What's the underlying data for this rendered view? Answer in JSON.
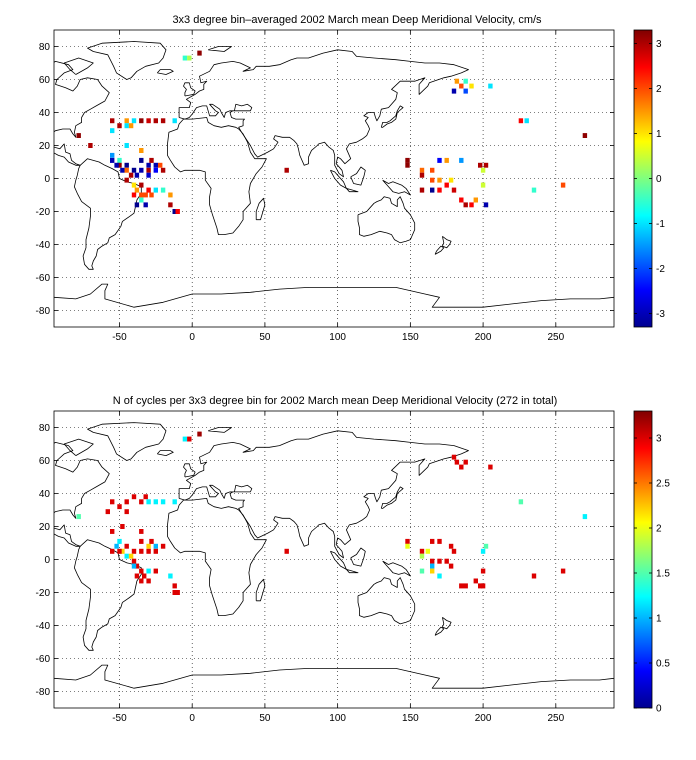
{
  "chart_data": [
    {
      "type": "heatmap",
      "title": "3x3 degree bin–averaged 2002 March mean Deep Meridional Velocity, cm/s",
      "xlim": [
        -95,
        290
      ],
      "ylim": [
        -90,
        90
      ],
      "x_ticks": [
        -50,
        0,
        50,
        100,
        150,
        200,
        250
      ],
      "y_ticks": [
        -80,
        -60,
        -40,
        -20,
        0,
        20,
        40,
        60,
        80
      ],
      "grid": true,
      "colorbar": {
        "range": [
          -3.3,
          3.3
        ],
        "ticks": [
          -3,
          -2,
          -1,
          0,
          1,
          2,
          3
        ],
        "colormap": "jet",
        "placement": "right"
      },
      "bins": [
        [
          5,
          76,
          3.2
        ],
        [
          -5,
          73,
          -0.5
        ],
        [
          -2,
          73,
          0.3
        ],
        [
          -55,
          35,
          3.0
        ],
        [
          -45,
          35,
          1.5
        ],
        [
          -40,
          35,
          -1.0
        ],
        [
          -35,
          35,
          3.2
        ],
        [
          -30,
          35,
          2.8
        ],
        [
          -25,
          35,
          3.0
        ],
        [
          -20,
          35,
          3.0
        ],
        [
          -50,
          32,
          3.0
        ],
        [
          -45,
          32,
          -1.0
        ],
        [
          -42,
          32,
          1.5
        ],
        [
          -55,
          29,
          -1.0
        ],
        [
          -78,
          26,
          3.2
        ],
        [
          -45,
          20,
          -1.0
        ],
        [
          -35,
          17,
          1.5
        ],
        [
          -55,
          14,
          -1.5
        ],
        [
          -50,
          11,
          -0.5
        ],
        [
          -50,
          8,
          3.2
        ],
        [
          -45,
          8,
          -3.2
        ],
        [
          -55,
          11,
          -3.0
        ],
        [
          -52,
          8,
          -3.0
        ],
        [
          -48,
          5,
          -3.0
        ],
        [
          -45,
          5,
          1.8
        ],
        [
          -35,
          11,
          -3.2
        ],
        [
          -30,
          8,
          -3.0
        ],
        [
          -25,
          8,
          -3.0
        ],
        [
          -28,
          11,
          3.0
        ],
        [
          -22,
          8,
          2.0
        ],
        [
          -20,
          5,
          3.0
        ],
        [
          -40,
          5,
          -3.2
        ],
        [
          -35,
          5,
          -3.0
        ],
        [
          -30,
          5,
          3.0
        ],
        [
          -25,
          5,
          -2.5
        ],
        [
          -42,
          2,
          3.0
        ],
        [
          -38,
          2,
          -3.0
        ],
        [
          -30,
          2,
          -2.8
        ],
        [
          -45,
          -1,
          3.0
        ],
        [
          -35,
          -4,
          3.0
        ],
        [
          -38,
          -7,
          1.5
        ],
        [
          -30,
          -7,
          2.5
        ],
        [
          -25,
          -7,
          -1.0
        ],
        [
          -20,
          -7,
          -0.5
        ],
        [
          -40,
          -10,
          2.5
        ],
        [
          -35,
          -10,
          2.0
        ],
        [
          -32,
          -10,
          2.0
        ],
        [
          -28,
          -10,
          2.0
        ],
        [
          -15,
          -10,
          1.5
        ],
        [
          -35,
          -13,
          -0.5
        ],
        [
          -38,
          -16,
          -3.2
        ],
        [
          -32,
          -16,
          -3.0
        ],
        [
          -15,
          -16,
          3.0
        ],
        [
          -12,
          -20,
          -3.2
        ],
        [
          -10,
          -20,
          2.5
        ],
        [
          -40,
          -4,
          1.0
        ],
        [
          65,
          5,
          3.0
        ],
        [
          148,
          11,
          3.2
        ],
        [
          148,
          8,
          3.2
        ],
        [
          170,
          11,
          -2.5
        ],
        [
          175,
          11,
          1.5
        ],
        [
          185,
          11,
          -1.5
        ],
        [
          158,
          5,
          1.8
        ],
        [
          165,
          5,
          2.0
        ],
        [
          198,
          8,
          3.0
        ],
        [
          202,
          8,
          3.0
        ],
        [
          200,
          5,
          0.5
        ],
        [
          158,
          2,
          3.0
        ],
        [
          165,
          -1,
          2.0
        ],
        [
          170,
          -1,
          1.5
        ],
        [
          178,
          -1,
          1.0
        ],
        [
          200,
          -4,
          0.5
        ],
        [
          175,
          -4,
          2.5
        ],
        [
          158,
          -7,
          3.0
        ],
        [
          165,
          -7,
          -3.2
        ],
        [
          170,
          -7,
          2.5
        ],
        [
          180,
          -7,
          2.8
        ],
        [
          185,
          -13,
          2.5
        ],
        [
          188,
          -16,
          3.0
        ],
        [
          195,
          -13,
          1.5
        ],
        [
          202,
          -16,
          -3.0
        ],
        [
          192,
          -16,
          2.5
        ],
        [
          235,
          -7,
          -0.5
        ],
        [
          255,
          -4,
          2.0
        ],
        [
          182,
          59,
          1.5
        ],
        [
          185,
          56,
          2.0
        ],
        [
          188,
          59,
          -0.5
        ],
        [
          180,
          53,
          -3.0
        ],
        [
          188,
          53,
          -2.0
        ],
        [
          205,
          56,
          -1.0
        ],
        [
          192,
          56,
          1.0
        ],
        [
          270,
          26,
          3.2
        ],
        [
          226,
          35,
          2.5
        ],
        [
          230,
          35,
          -1.0
        ],
        [
          -70,
          20,
          3.0
        ],
        [
          -12,
          35,
          -1.0
        ]
      ]
    },
    {
      "type": "heatmap",
      "title": "N of cycles per 3x3 degree bin for 2002 March mean Deep Meridional Velocity (272 in total)",
      "xlim": [
        -95,
        290
      ],
      "ylim": [
        -90,
        90
      ],
      "x_ticks": [
        -50,
        0,
        50,
        100,
        150,
        200,
        250
      ],
      "y_ticks": [
        -80,
        -60,
        -40,
        -20,
        0,
        20,
        40,
        60,
        80
      ],
      "grid": true,
      "colorbar": {
        "range": [
          0,
          3.3
        ],
        "ticks": [
          0,
          0.5,
          1,
          1.5,
          2,
          2.5,
          3
        ],
        "colormap": "jet",
        "placement": "right"
      },
      "bins": [
        [
          5,
          76,
          3.2
        ],
        [
          -5,
          73,
          1.2
        ],
        [
          -2,
          73,
          3.0
        ],
        [
          -55,
          35,
          3.0
        ],
        [
          -45,
          35,
          3.0
        ],
        [
          -40,
          38,
          3.0
        ],
        [
          -35,
          35,
          3.0
        ],
        [
          -30,
          35,
          1.2
        ],
        [
          -25,
          35,
          1.2
        ],
        [
          -20,
          35,
          1.2
        ],
        [
          -32,
          38,
          3.0
        ],
        [
          -50,
          32,
          3.0
        ],
        [
          -58,
          29,
          3.0
        ],
        [
          -45,
          29,
          3.0
        ],
        [
          -78,
          26,
          1.5
        ],
        [
          -48,
          20,
          3.0
        ],
        [
          -55,
          17,
          3.0
        ],
        [
          -35,
          17,
          3.0
        ],
        [
          -50,
          11,
          1.2
        ],
        [
          -52,
          8,
          1.0
        ],
        [
          -48,
          5,
          2.2
        ],
        [
          -45,
          8,
          3.0
        ],
        [
          -50,
          5,
          3.0
        ],
        [
          -55,
          5,
          3.0
        ],
        [
          -35,
          11,
          3.0
        ],
        [
          -30,
          8,
          2.2
        ],
        [
          -25,
          8,
          1.0
        ],
        [
          -20,
          8,
          3.0
        ],
        [
          -28,
          11,
          3.0
        ],
        [
          -40,
          5,
          3.0
        ],
        [
          -35,
          5,
          3.0
        ],
        [
          -30,
          5,
          3.0
        ],
        [
          -25,
          5,
          3.0
        ],
        [
          -45,
          2,
          1.2
        ],
        [
          -42,
          2,
          2.2
        ],
        [
          -40,
          -1,
          3.0
        ],
        [
          -38,
          -4,
          3.0
        ],
        [
          -35,
          -7,
          3.0
        ],
        [
          -30,
          -7,
          1.2
        ],
        [
          -25,
          -7,
          3.0
        ],
        [
          -38,
          -10,
          3.0
        ],
        [
          -33,
          -10,
          3.0
        ],
        [
          -30,
          -13,
          3.0
        ],
        [
          -15,
          -10,
          1.2
        ],
        [
          -35,
          -13,
          3.0
        ],
        [
          -12,
          -16,
          3.0
        ],
        [
          -12,
          -20,
          3.0
        ],
        [
          -10,
          -20,
          3.0
        ],
        [
          -40,
          -4,
          1.0
        ],
        [
          65,
          5,
          3.0
        ],
        [
          148,
          11,
          3.0
        ],
        [
          148,
          8,
          2.0
        ],
        [
          165,
          11,
          3.0
        ],
        [
          170,
          11,
          3.0
        ],
        [
          178,
          8,
          3.0
        ],
        [
          180,
          5,
          3.0
        ],
        [
          158,
          5,
          3.0
        ],
        [
          162,
          5,
          2.0
        ],
        [
          200,
          5,
          1.2
        ],
        [
          202,
          8,
          1.5
        ],
        [
          158,
          2,
          1.8
        ],
        [
          165,
          -1,
          3.0
        ],
        [
          170,
          -1,
          3.0
        ],
        [
          175,
          -1,
          3.0
        ],
        [
          178,
          -4,
          3.0
        ],
        [
          165,
          -4,
          1.0
        ],
        [
          158,
          -7,
          1.5
        ],
        [
          165,
          -7,
          2.2
        ],
        [
          170,
          -10,
          1.2
        ],
        [
          185,
          -16,
          3.0
        ],
        [
          188,
          -16,
          3.0
        ],
        [
          198,
          -16,
          3.0
        ],
        [
          200,
          -16,
          3.0
        ],
        [
          195,
          -13,
          3.0
        ],
        [
          200,
          -7,
          3.0
        ],
        [
          235,
          -10,
          3.0
        ],
        [
          255,
          -7,
          3.0
        ],
        [
          182,
          59,
          3.0
        ],
        [
          185,
          56,
          3.0
        ],
        [
          188,
          59,
          3.0
        ],
        [
          180,
          62,
          3.0
        ],
        [
          205,
          56,
          3.0
        ],
        [
          270,
          26,
          1.2
        ],
        [
          226,
          35,
          1.5
        ],
        [
          -12,
          35,
          1.2
        ]
      ]
    }
  ]
}
